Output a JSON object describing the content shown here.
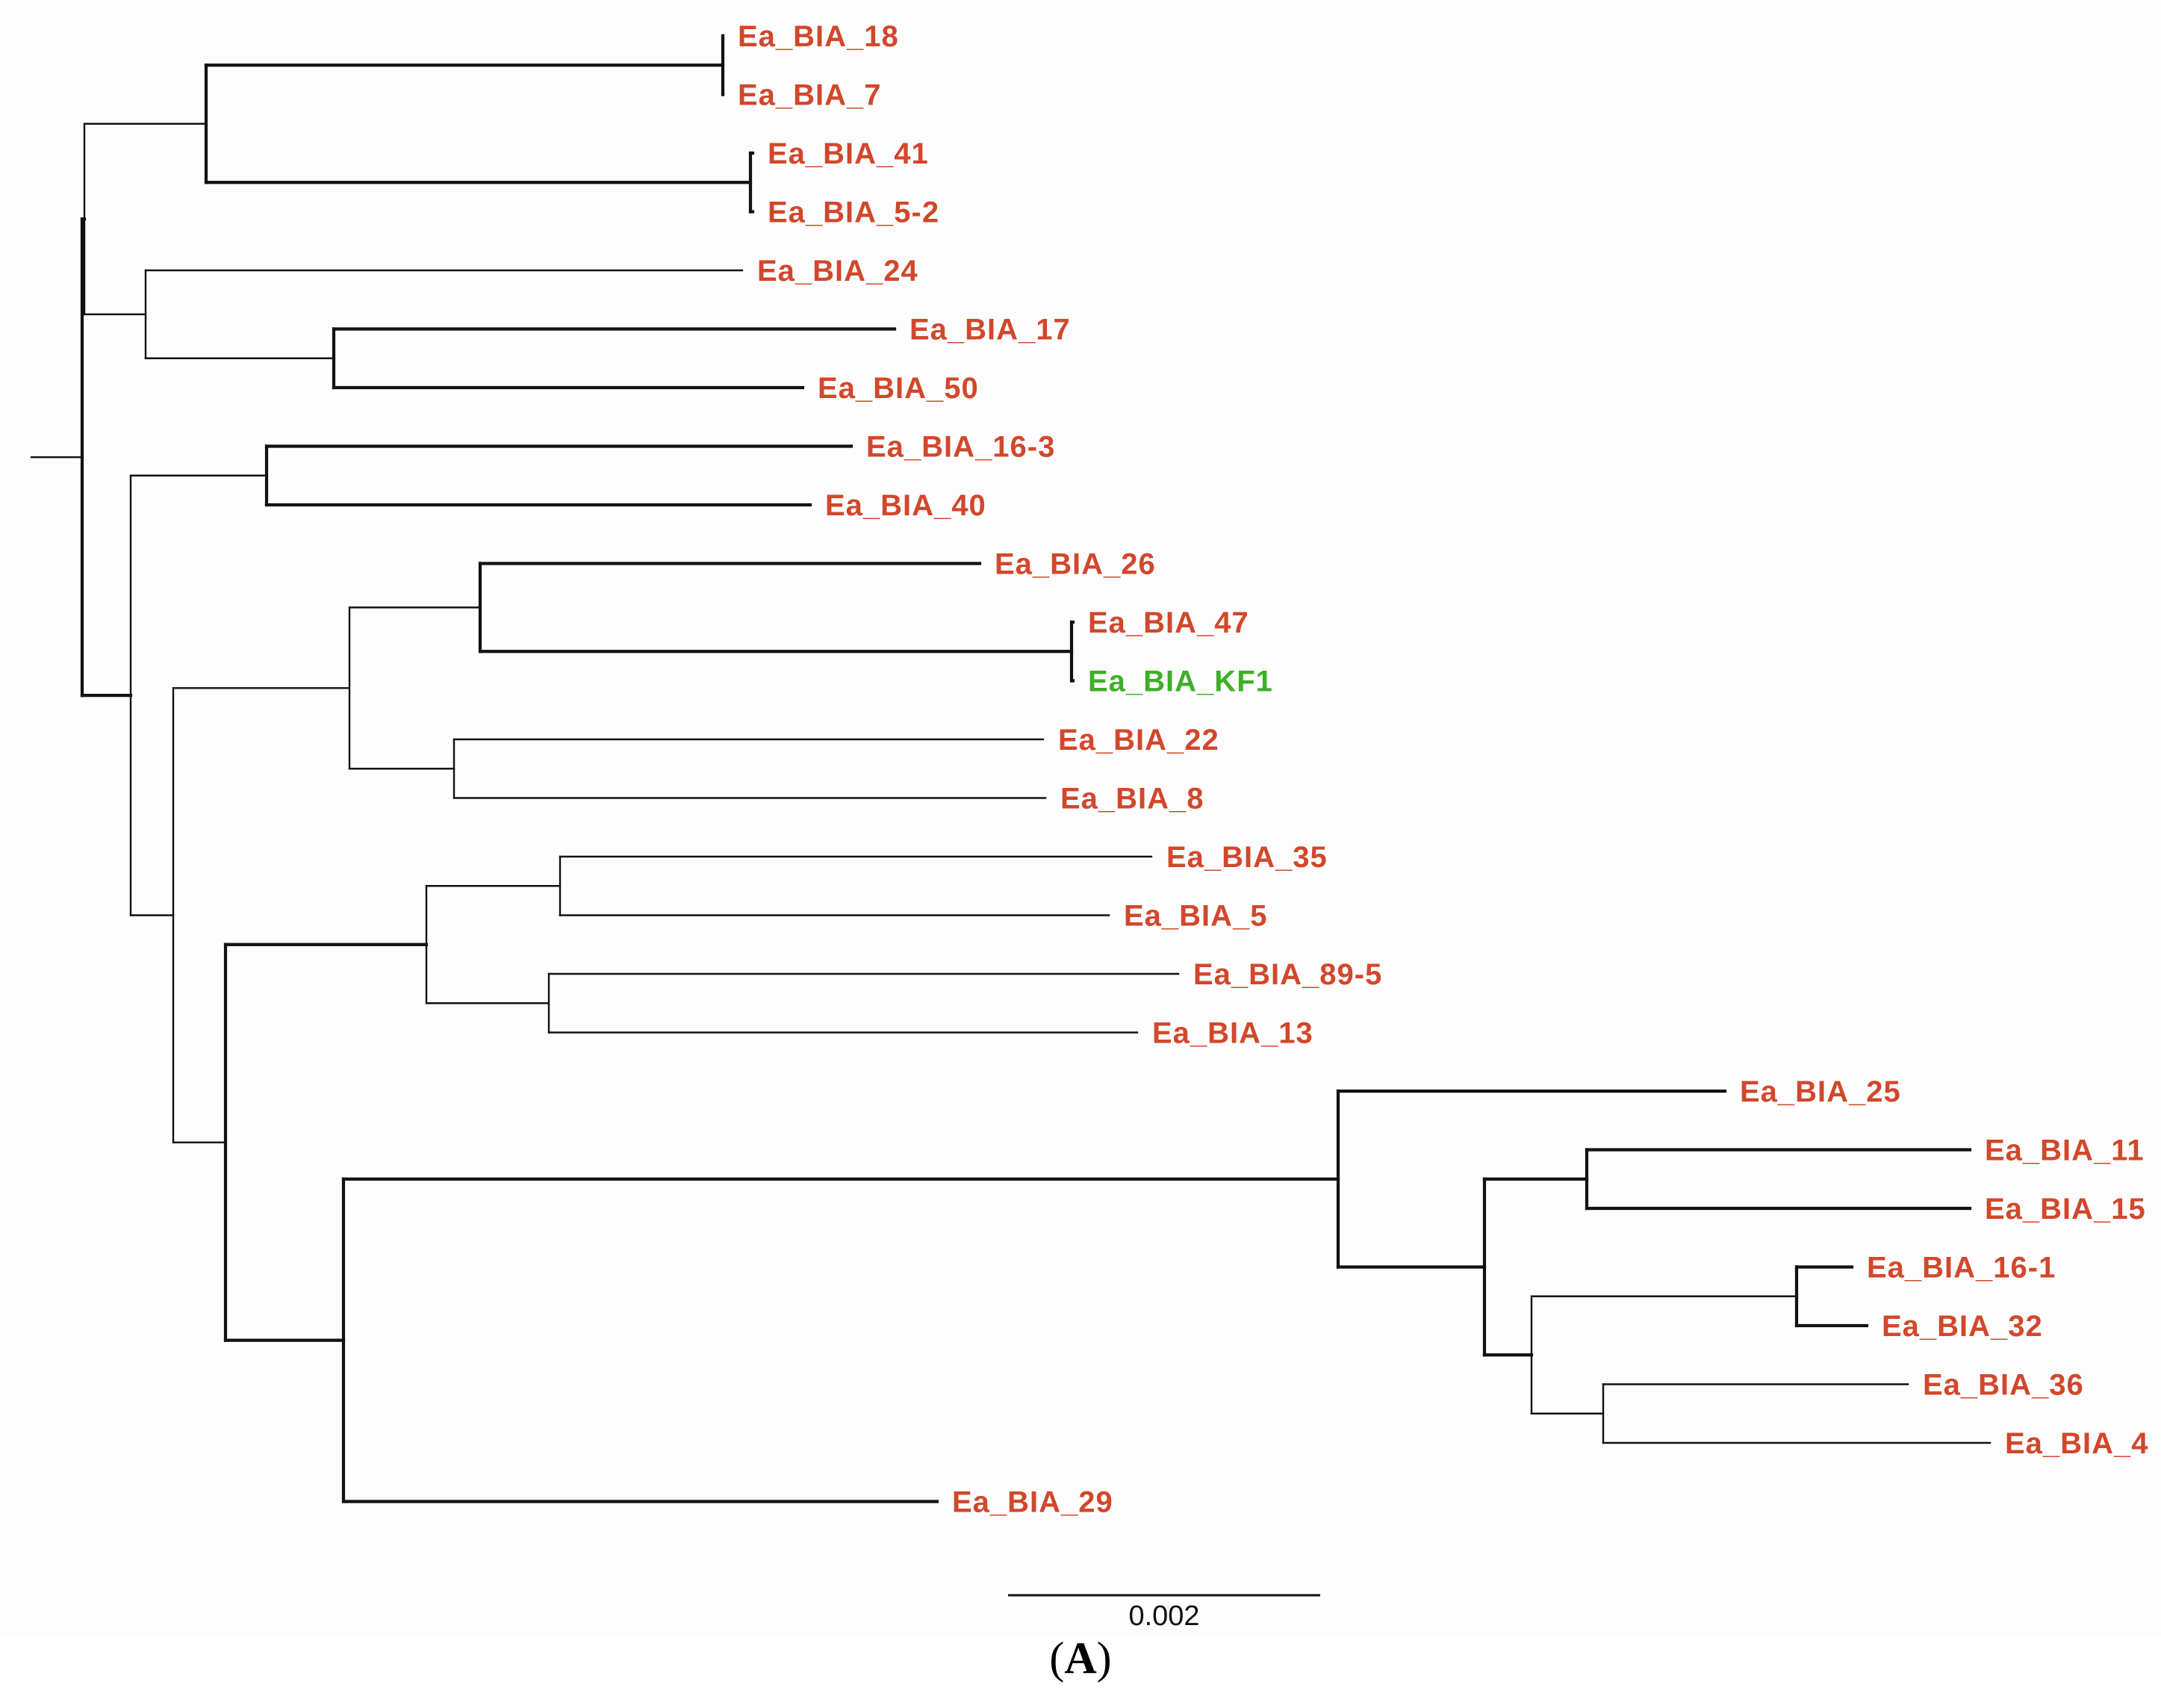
{
  "tree": {
    "leaf_color": "#d2472b",
    "highlight_color": "#3fae29",
    "leaves": [
      {
        "name": "Ea_BIA_18",
        "highlight": false
      },
      {
        "name": "Ea_BIA_7",
        "highlight": false
      },
      {
        "name": "Ea_BIA_41",
        "highlight": false
      },
      {
        "name": "Ea_BIA_5-2",
        "highlight": false
      },
      {
        "name": "Ea_BIA_24",
        "highlight": false
      },
      {
        "name": "Ea_BIA_17",
        "highlight": false
      },
      {
        "name": "Ea_BIA_50",
        "highlight": false
      },
      {
        "name": "Ea_BIA_16-3",
        "highlight": false
      },
      {
        "name": "Ea_BIA_40",
        "highlight": false
      },
      {
        "name": "Ea_BIA_26",
        "highlight": false
      },
      {
        "name": "Ea_BIA_47",
        "highlight": false
      },
      {
        "name": "Ea_BIA_KF1",
        "highlight": true
      },
      {
        "name": "Ea_BIA_22",
        "highlight": false
      },
      {
        "name": "Ea_BIA_8",
        "highlight": false
      },
      {
        "name": "Ea_BIA_35",
        "highlight": false
      },
      {
        "name": "Ea_BIA_5",
        "highlight": false
      },
      {
        "name": "Ea_BIA_89-5",
        "highlight": false
      },
      {
        "name": "Ea_BIA_13",
        "highlight": false
      },
      {
        "name": "Ea_BIA_25",
        "highlight": false
      },
      {
        "name": "Ea_BIA_11",
        "highlight": false
      },
      {
        "name": "Ea_BIA_15",
        "highlight": false
      },
      {
        "name": "Ea_BIA_16-1",
        "highlight": false
      },
      {
        "name": "Ea_BIA_32",
        "highlight": false
      },
      {
        "name": "Ea_BIA_36",
        "highlight": false
      },
      {
        "name": "Ea_BIA_4",
        "highlight": false
      },
      {
        "name": "Ea_BIA_29",
        "highlight": false
      }
    ],
    "scale_bar": {
      "label": "0.002",
      "value": 0.002
    }
  },
  "figure": {
    "panel_open": "(",
    "panel_letter": "A",
    "panel_close": ")"
  }
}
